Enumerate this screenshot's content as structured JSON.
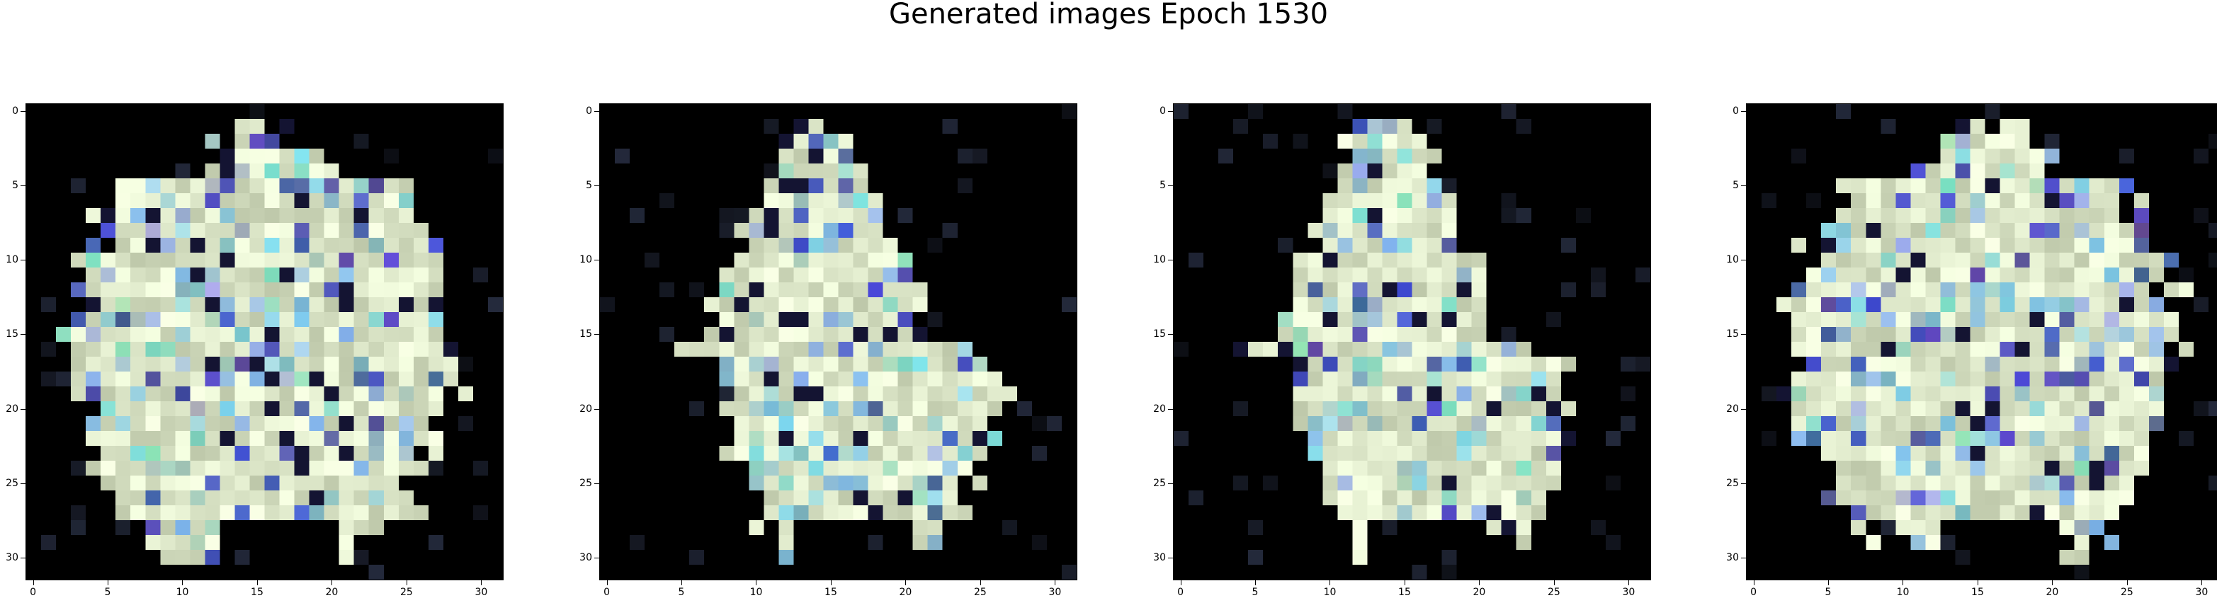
{
  "figure": {
    "title": "Generated images Epoch 1530"
  },
  "axes": {
    "x_ticks": [
      "0",
      "5",
      "10",
      "15",
      "20",
      "25",
      "30"
    ],
    "y_ticks": [
      "0",
      "5",
      "10",
      "15",
      "20",
      "25",
      "30"
    ],
    "xlim": [
      -0.5,
      31.5
    ],
    "ylim": [
      31.5,
      -0.5
    ]
  },
  "images": [
    {
      "grid_size": 32,
      "colormap": "rgb"
    },
    {
      "grid_size": 32,
      "colormap": "rgb"
    },
    {
      "grid_size": 32,
      "colormap": "rgb"
    },
    {
      "grid_size": 32,
      "colormap": "rgb"
    }
  ]
}
